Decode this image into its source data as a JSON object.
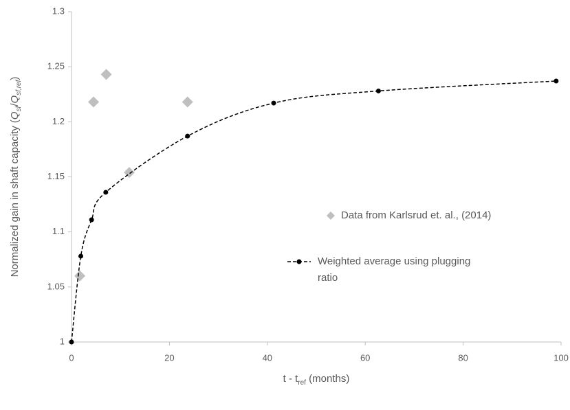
{
  "chart_data": {
    "type": "scatter",
    "x_label": [
      "t - t",
      "ref",
      " (months)"
    ],
    "y_label": [
      "Normalized gain in shaft capacity (",
      "Q",
      "sf",
      "/",
      "Q",
      "sf,ref",
      ")"
    ],
    "xlim": [
      0,
      100
    ],
    "xticks": [
      0,
      20,
      40,
      60,
      80,
      100
    ],
    "ylim": [
      1,
      1.3
    ],
    "yticks": [
      1,
      1.05,
      1.1,
      1.15,
      1.2,
      1.25,
      1.3
    ],
    "grid": false,
    "legend": "right",
    "series": [
      {
        "name": "Data from Karlsrud et. al., (2014)",
        "color": "#bfbfbf",
        "marker": "diamond",
        "x": [
          1.7,
          4.5,
          7.1,
          11.8,
          23.7
        ],
        "values": [
          1.06,
          1.218,
          1.243,
          1.154,
          1.218
        ]
      },
      {
        "name": "Weighted average using plugging ratio",
        "color": "#000000",
        "marker": "circle",
        "line": "dashed",
        "x": [
          0,
          1.9,
          4.1,
          7.0,
          23.7,
          41.3,
          62.7,
          99
        ],
        "values": [
          1,
          1.078,
          1.111,
          1.136,
          1.187,
          1.217,
          1.228,
          1.237
        ]
      }
    ]
  }
}
